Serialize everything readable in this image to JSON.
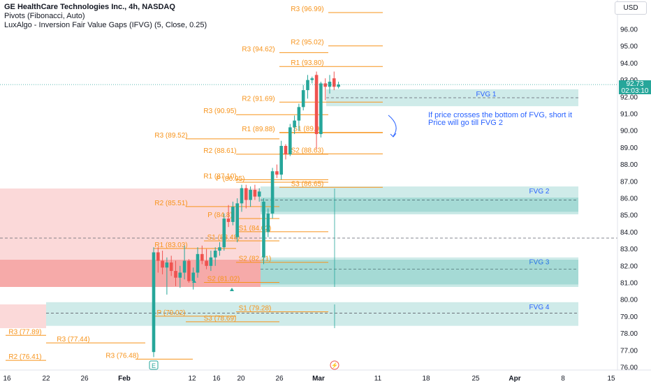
{
  "legend": {
    "title": "GE HealthCare Technologies Inc., 4h, NASDAQ",
    "pivots": "Pivots (Fibonacci, Auto)",
    "fvg_indicator": "LuxAlgo - Inversion Fair Value Gaps (IFVG) (5, Close, 0.25)"
  },
  "currency": "USD",
  "last_price": {
    "value": "92.73",
    "countdown": "02:03:10"
  },
  "annotation": {
    "line1": "If price crosses the bottom of FVG, short it",
    "line2": "Price will go till FVG 2"
  },
  "colors": {
    "up": "#26a69a",
    "down": "#ef5350",
    "pivot": "#f7931a",
    "fvg_bull": "#26a69a",
    "fvg_bear": "#ef5350",
    "annotation": "#2962ff"
  },
  "y_axis": {
    "range": [
      76,
      97.5
    ],
    "ticks": [
      "96.00",
      "95.00",
      "94.00",
      "93.00",
      "92.00",
      "91.00",
      "90.00",
      "89.00",
      "88.00",
      "87.00",
      "86.00",
      "85.00",
      "84.00",
      "83.00",
      "82.00",
      "81.00",
      "80.00",
      "79.00",
      "78.00",
      "77.00",
      "76.00"
    ]
  },
  "x_axis": {
    "ticks": [
      "16",
      "22",
      "26",
      "Feb",
      "12",
      "16",
      "20",
      "26",
      "Mar",
      "11",
      "18",
      "25",
      "Apr",
      "8",
      "15"
    ]
  },
  "fvg_zones": [
    {
      "label": "FVG 1",
      "top": 92.45,
      "bottom": 91.45,
      "mid": 91.95
    },
    {
      "label": "FVG 2",
      "top": 86.7,
      "bottom": 85.2,
      "mid": 85.9
    },
    {
      "label": "FVG 3",
      "top": 82.5,
      "bottom": 80.9,
      "mid": 81.8
    },
    {
      "label": "FVG 4",
      "top": 79.85,
      "bottom": 78.45,
      "mid": 79.2
    }
  ],
  "pivot_labels": [
    {
      "text": "R3 (96.99)",
      "value": 96.99
    },
    {
      "text": "R2 (95.02)",
      "value": 95.02
    },
    {
      "text": "R3 (94.62)",
      "value": 94.62
    },
    {
      "text": "R1 (93.80)",
      "value": 93.8
    },
    {
      "text": "R2 (91.69)",
      "value": 91.69
    },
    {
      "text": "R3 (90.95)",
      "value": 90.95
    },
    {
      "text": "R1 (89.88)",
      "value": 89.88
    },
    {
      "text": "S1 (89.9)",
      "value": 89.9
    },
    {
      "text": "R3 (89.52)",
      "value": 89.52
    },
    {
      "text": "R2 (88.61)",
      "value": 88.61
    },
    {
      "text": "S2 (88.63)",
      "value": 88.63
    },
    {
      "text": "R1 (87.10)",
      "value": 87.1
    },
    {
      "text": "P (86.95)",
      "value": 86.95
    },
    {
      "text": "S3 (86.65)",
      "value": 86.65
    },
    {
      "text": "R2 (85.51)",
      "value": 85.51
    },
    {
      "text": "P (84.8)",
      "value": 84.8
    },
    {
      "text": "S1 (84.02)",
      "value": 84.02
    },
    {
      "text": "R1 (83.03)",
      "value": 83.03
    },
    {
      "text": "S1 (83.48)",
      "value": 83.48
    },
    {
      "text": "S2 (82.21)",
      "value": 82.21
    },
    {
      "text": "S2 (81.02)",
      "value": 81.02
    },
    {
      "text": "S1 (79.28)",
      "value": 79.28
    },
    {
      "text": "P (79.02)",
      "value": 79.02
    },
    {
      "text": "S3 (78.69)",
      "value": 78.69
    },
    {
      "text": "R3 (77.89)",
      "value": 77.89
    },
    {
      "text": "R3 (77.44)",
      "value": 77.44
    },
    {
      "text": "R3 (76.48)",
      "value": 76.48
    },
    {
      "text": "R2 (76.41)",
      "value": 76.41
    }
  ],
  "candles": [
    {
      "o": 76.9,
      "h": 83.1,
      "l": 76.6,
      "c": 82.8
    },
    {
      "o": 82.8,
      "h": 83.1,
      "l": 81.6,
      "c": 82.3
    },
    {
      "o": 82.3,
      "h": 82.9,
      "l": 81.5,
      "c": 81.9
    },
    {
      "o": 81.9,
      "h": 82.5,
      "l": 80.3,
      "c": 82.2
    },
    {
      "o": 82.2,
      "h": 82.6,
      "l": 81.4,
      "c": 81.7
    },
    {
      "o": 81.7,
      "h": 82.3,
      "l": 80.8,
      "c": 81.3
    },
    {
      "o": 81.3,
      "h": 82.0,
      "l": 80.7,
      "c": 81.6
    },
    {
      "o": 81.6,
      "h": 83.2,
      "l": 81.2,
      "c": 82.3
    },
    {
      "o": 82.3,
      "h": 82.4,
      "l": 81.0,
      "c": 81.1
    },
    {
      "o": 81.1,
      "h": 81.9,
      "l": 80.6,
      "c": 81.6
    },
    {
      "o": 81.6,
      "h": 83.1,
      "l": 81.3,
      "c": 82.7
    },
    {
      "o": 82.7,
      "h": 83.2,
      "l": 82.1,
      "c": 82.3
    },
    {
      "o": 82.3,
      "h": 83.0,
      "l": 81.8,
      "c": 82.0
    },
    {
      "o": 82.0,
      "h": 82.9,
      "l": 81.7,
      "c": 82.5
    },
    {
      "o": 82.5,
      "h": 83.1,
      "l": 82.0,
      "c": 82.9
    },
    {
      "o": 82.9,
      "h": 83.4,
      "l": 82.6,
      "c": 83.1
    },
    {
      "o": 83.1,
      "h": 85.1,
      "l": 82.9,
      "c": 84.8
    },
    {
      "o": 84.8,
      "h": 85.6,
      "l": 84.3,
      "c": 84.6
    },
    {
      "o": 84.6,
      "h": 85.8,
      "l": 84.4,
      "c": 85.5
    },
    {
      "o": 83.7,
      "h": 86.0,
      "l": 83.4,
      "c": 85.7
    },
    {
      "o": 85.7,
      "h": 86.8,
      "l": 85.2,
      "c": 86.6
    },
    {
      "o": 86.6,
      "h": 86.8,
      "l": 85.4,
      "c": 85.9
    },
    {
      "o": 85.9,
      "h": 86.7,
      "l": 85.5,
      "c": 86.5
    },
    {
      "o": 86.5,
      "h": 86.8,
      "l": 85.9,
      "c": 86.1
    },
    {
      "o": 86.1,
      "h": 86.6,
      "l": 85.8,
      "c": 86.4
    },
    {
      "o": 82.5,
      "h": 86.0,
      "l": 82.1,
      "c": 85.8
    },
    {
      "o": 84.0,
      "h": 85.4,
      "l": 83.7,
      "c": 85.1
    },
    {
      "o": 85.1,
      "h": 87.8,
      "l": 84.8,
      "c": 87.6
    },
    {
      "o": 87.6,
      "h": 88.0,
      "l": 87.2,
      "c": 87.4
    },
    {
      "o": 87.4,
      "h": 89.4,
      "l": 87.1,
      "c": 89.1
    },
    {
      "o": 89.1,
      "h": 89.2,
      "l": 88.3,
      "c": 88.6
    },
    {
      "o": 88.6,
      "h": 90.4,
      "l": 88.5,
      "c": 90.2
    },
    {
      "o": 90.2,
      "h": 90.9,
      "l": 89.8,
      "c": 90.6
    },
    {
      "o": 90.6,
      "h": 91.6,
      "l": 90.0,
      "c": 91.4
    },
    {
      "o": 91.4,
      "h": 92.7,
      "l": 91.2,
      "c": 92.4
    },
    {
      "o": 92.4,
      "h": 93.3,
      "l": 91.9,
      "c": 93.0
    },
    {
      "o": 93.0,
      "h": 93.2,
      "l": 92.8,
      "c": 93.1
    },
    {
      "o": 93.3,
      "h": 93.5,
      "l": 88.9,
      "c": 89.8
    },
    {
      "o": 89.8,
      "h": 92.9,
      "l": 89.6,
      "c": 92.8
    },
    {
      "o": 92.8,
      "h": 93.1,
      "l": 91.8,
      "c": 92.6
    },
    {
      "o": 92.6,
      "h": 93.3,
      "l": 92.2,
      "c": 92.9
    },
    {
      "o": 93.1,
      "h": 93.5,
      "l": 92.4,
      "c": 92.6
    },
    {
      "o": 92.6,
      "h": 92.9,
      "l": 92.5,
      "c": 92.73
    }
  ]
}
